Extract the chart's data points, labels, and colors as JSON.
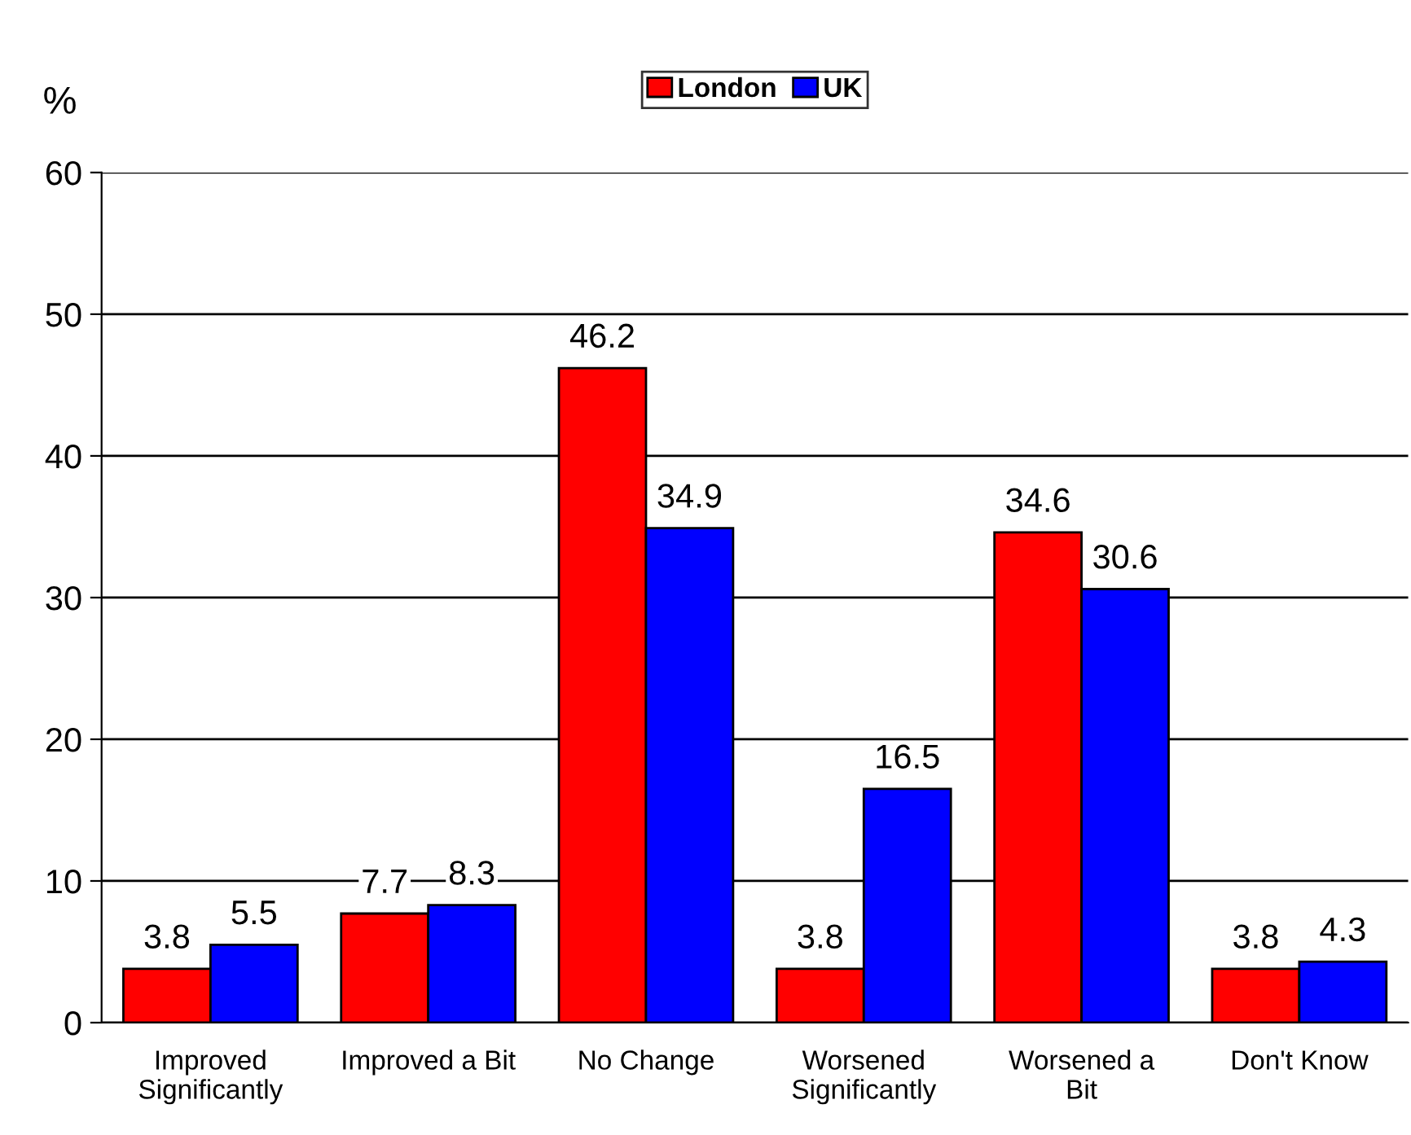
{
  "chart_data": {
    "type": "bar",
    "ylabel": "%",
    "categories": [
      "Improved\nSignificantly",
      "Improved a Bit",
      "No Change",
      "Worsened\nSignificantly",
      "Worsened a\nBit",
      "Don't Know"
    ],
    "series": [
      {
        "name": "London",
        "color": "#ff0000",
        "values": [
          3.8,
          7.7,
          46.2,
          3.8,
          34.6,
          3.8
        ]
      },
      {
        "name": "UK",
        "color": "#0000ff",
        "values": [
          5.5,
          8.3,
          34.9,
          16.5,
          30.6,
          4.3
        ]
      }
    ],
    "ylim": [
      0,
      60
    ],
    "yticks": [
      0,
      10,
      20,
      30,
      40,
      50,
      60
    ],
    "grid": "y",
    "legend": "top",
    "data_labels": true
  }
}
